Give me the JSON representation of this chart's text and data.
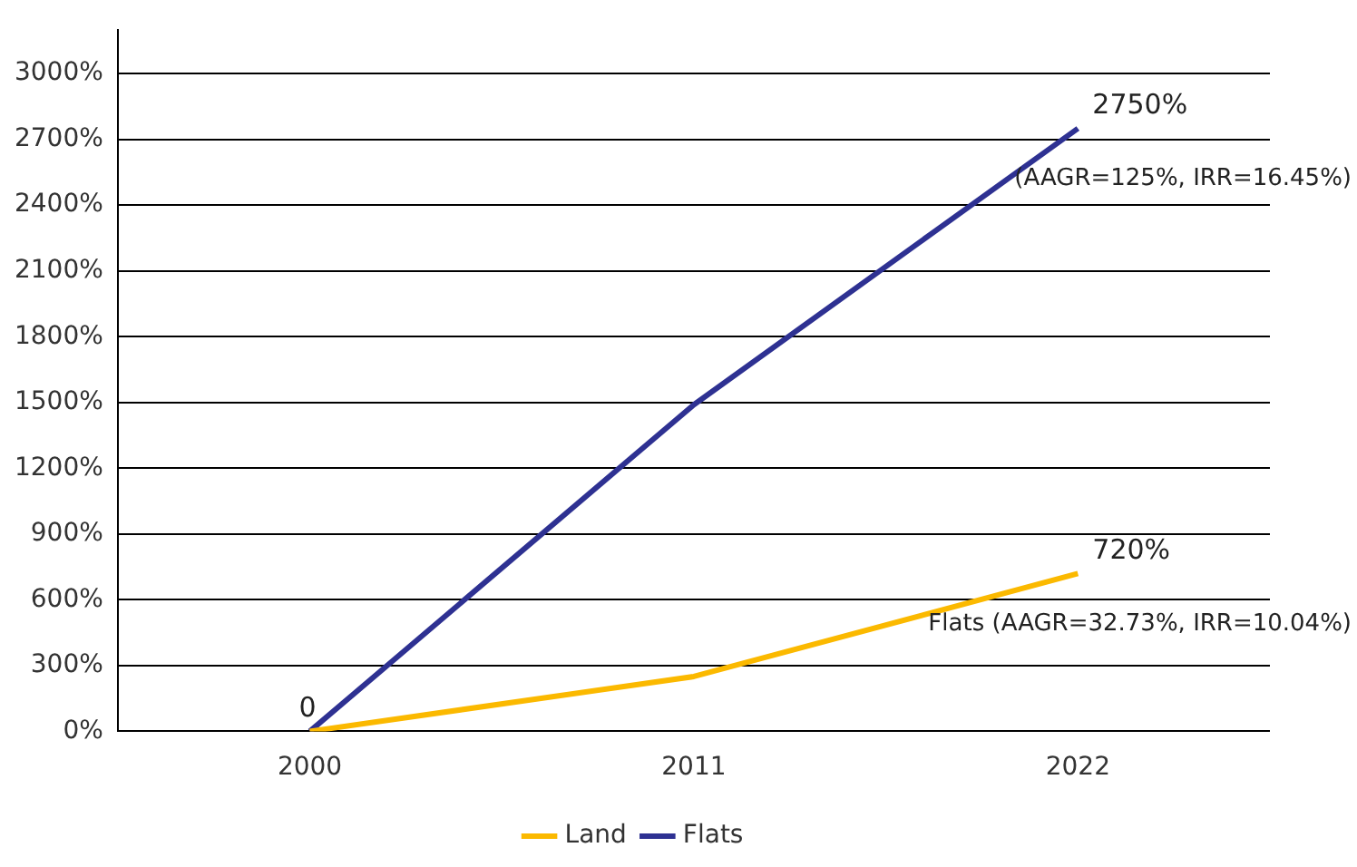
{
  "chart_data": {
    "type": "line",
    "categories": [
      "2000",
      "2011",
      "2022"
    ],
    "series": [
      {
        "name": "Land",
        "color": "#fbb900",
        "values": [
          0,
          250,
          720
        ]
      },
      {
        "name": "Flats",
        "color": "#2e3192",
        "values": [
          0,
          1490,
          2750
        ]
      }
    ],
    "ylim": [
      0,
      3200
    ],
    "yticks": [
      {
        "value": 0,
        "label": "0%"
      },
      {
        "value": 300,
        "label": "300%"
      },
      {
        "value": 600,
        "label": "600%"
      },
      {
        "value": 900,
        "label": "900%"
      },
      {
        "value": 1200,
        "label": "1200%"
      },
      {
        "value": 1500,
        "label": "1500%"
      },
      {
        "value": 1800,
        "label": "1800%"
      },
      {
        "value": 2100,
        "label": "2100%"
      },
      {
        "value": 2400,
        "label": "2400%"
      },
      {
        "value": 2700,
        "label": "2700%"
      },
      {
        "value": 3000,
        "label": "3000%"
      }
    ],
    "grid": "y",
    "legend": "bottom",
    "marker": "none",
    "line_style": "solid",
    "annotations": [
      {
        "text": "0",
        "x": "2000",
        "y": 0
      },
      {
        "text": "2750%",
        "x": "2022",
        "y": 2750
      },
      {
        "text": "(AAGR=125%, IRR=16.45%)",
        "x": "2022",
        "y": 2750
      },
      {
        "text": "720%",
        "x": "2022",
        "y": 720
      },
      {
        "text": "Flats (AAGR=32.73%, IRR=10.04%)",
        "x": "2022",
        "y": 720
      }
    ]
  }
}
